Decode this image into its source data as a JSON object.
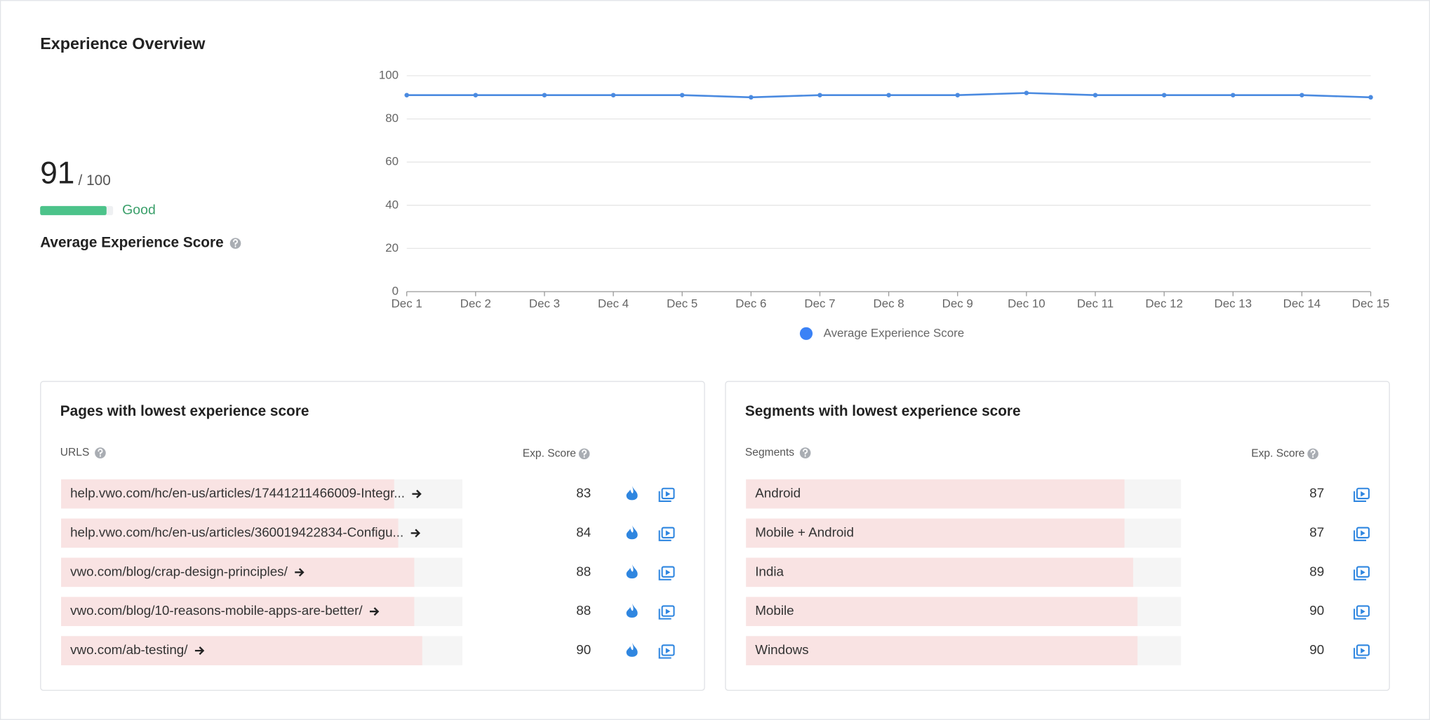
{
  "header": {
    "title": "Experience Overview"
  },
  "score": {
    "value": 91,
    "max": {
      "value": 100,
      "label": "/ 100"
    },
    "rating": "Good",
    "label": "Average Experience Score"
  },
  "chart_data": {
    "type": "line",
    "categories": [
      "Dec 1",
      "Dec 2",
      "Dec 3",
      "Dec 4",
      "Dec 5",
      "Dec 6",
      "Dec 7",
      "Dec 8",
      "Dec 9",
      "Dec 10",
      "Dec 11",
      "Dec 12",
      "Dec 13",
      "Dec 14",
      "Dec 15"
    ],
    "series": [
      {
        "name": "Average Experience Score",
        "color": "#4a8ae0",
        "values": [
          91,
          91,
          91,
          91,
          91,
          90,
          91,
          91,
          91,
          92,
          91,
          91,
          91,
          91,
          90
        ]
      }
    ],
    "ylim": [
      0,
      100
    ],
    "yticks": [
      0,
      20,
      40,
      60,
      80,
      100
    ],
    "grid": true,
    "legend": "bottom"
  },
  "pages": {
    "title": "Pages with lowest experience score",
    "columns": [
      "URLS",
      "Exp. Score"
    ],
    "rows": [
      {
        "label": "help.vwo.com/hc/en-us/articles/17441211466009-Integr...",
        "score": 83
      },
      {
        "label": "help.vwo.com/hc/en-us/articles/360019422834-Configu...",
        "score": 84
      },
      {
        "label": "vwo.com/blog/crap-design-principles/",
        "score": 88
      },
      {
        "label": "vwo.com/blog/10-reasons-mobile-apps-are-better/",
        "score": 88
      },
      {
        "label": "vwo.com/ab-testing/",
        "score": 90
      }
    ]
  },
  "segments": {
    "title": "Segments with lowest experience score",
    "columns": [
      "Segments",
      "Exp. Score"
    ],
    "rows": [
      {
        "label": "Android",
        "score": 87
      },
      {
        "label": "Mobile + Android",
        "score": 87
      },
      {
        "label": "India",
        "score": 89
      },
      {
        "label": "Mobile",
        "score": 90
      },
      {
        "label": "Windows",
        "score": 90
      }
    ]
  }
}
